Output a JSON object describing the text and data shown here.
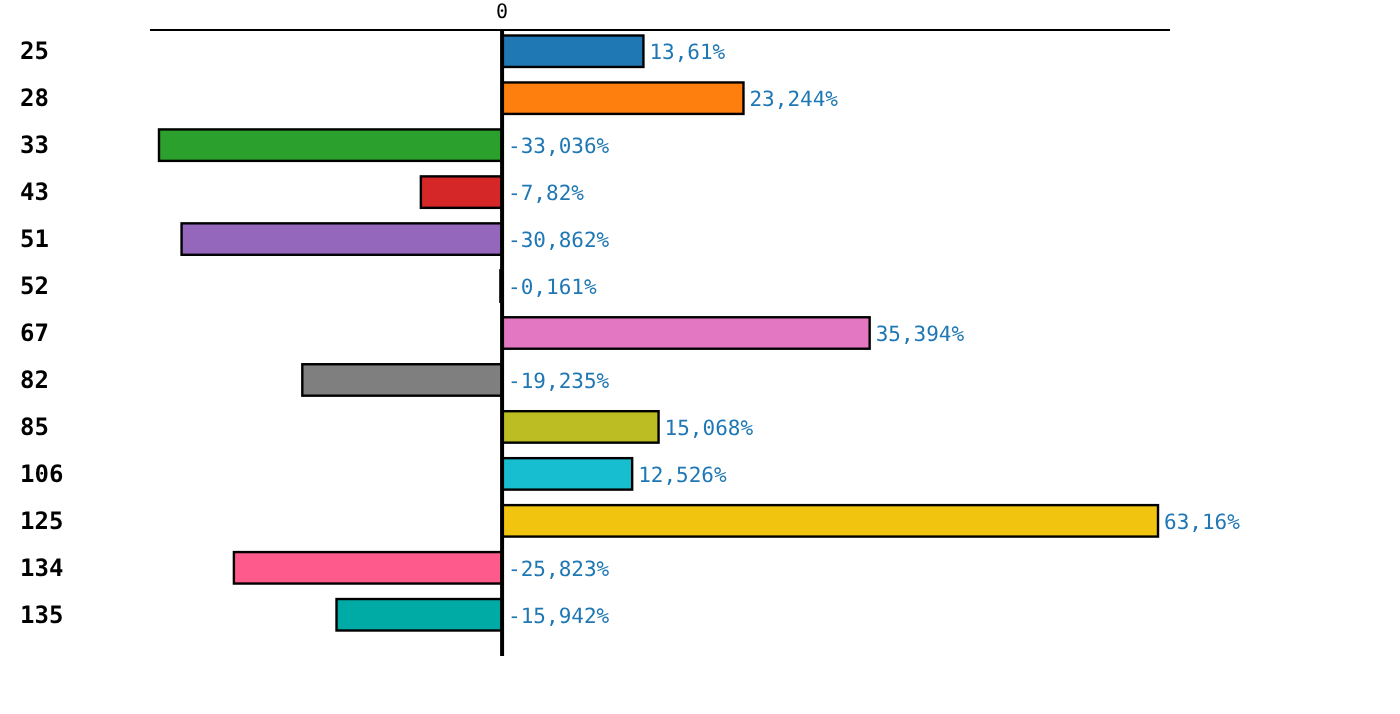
{
  "chart_data": {
    "type": "bar",
    "orientation": "horizontal",
    "categories": [
      "25",
      "28",
      "33",
      "43",
      "51",
      "52",
      "67",
      "82",
      "85",
      "106",
      "125",
      "134",
      "135"
    ],
    "values": [
      13.61,
      23.244,
      -33.036,
      -7.82,
      -30.862,
      -0.161,
      35.394,
      -19.235,
      15.068,
      12.526,
      63.16,
      -25.823,
      -15.942
    ],
    "colors": [
      "#1f77b4",
      "#ff7f0e",
      "#2ca02c",
      "#d62728",
      "#9467bd",
      "#8c564b",
      "#e377c2",
      "#7f7f7f",
      "#bcbd22",
      "#17becf",
      "#f1c40f",
      "#ff5a8c",
      "#00aaa5"
    ],
    "value_labels": [
      "13,61%",
      "23,244%",
      "-33,036%",
      "-7,82%",
      "-30,862%",
      "-0,161%",
      "35,394%",
      "-19,235%",
      "15,068%",
      "12,526%",
      "63,16%",
      "-25,823%",
      "-15,942%"
    ],
    "annotations": [
      "0"
    ]
  }
}
